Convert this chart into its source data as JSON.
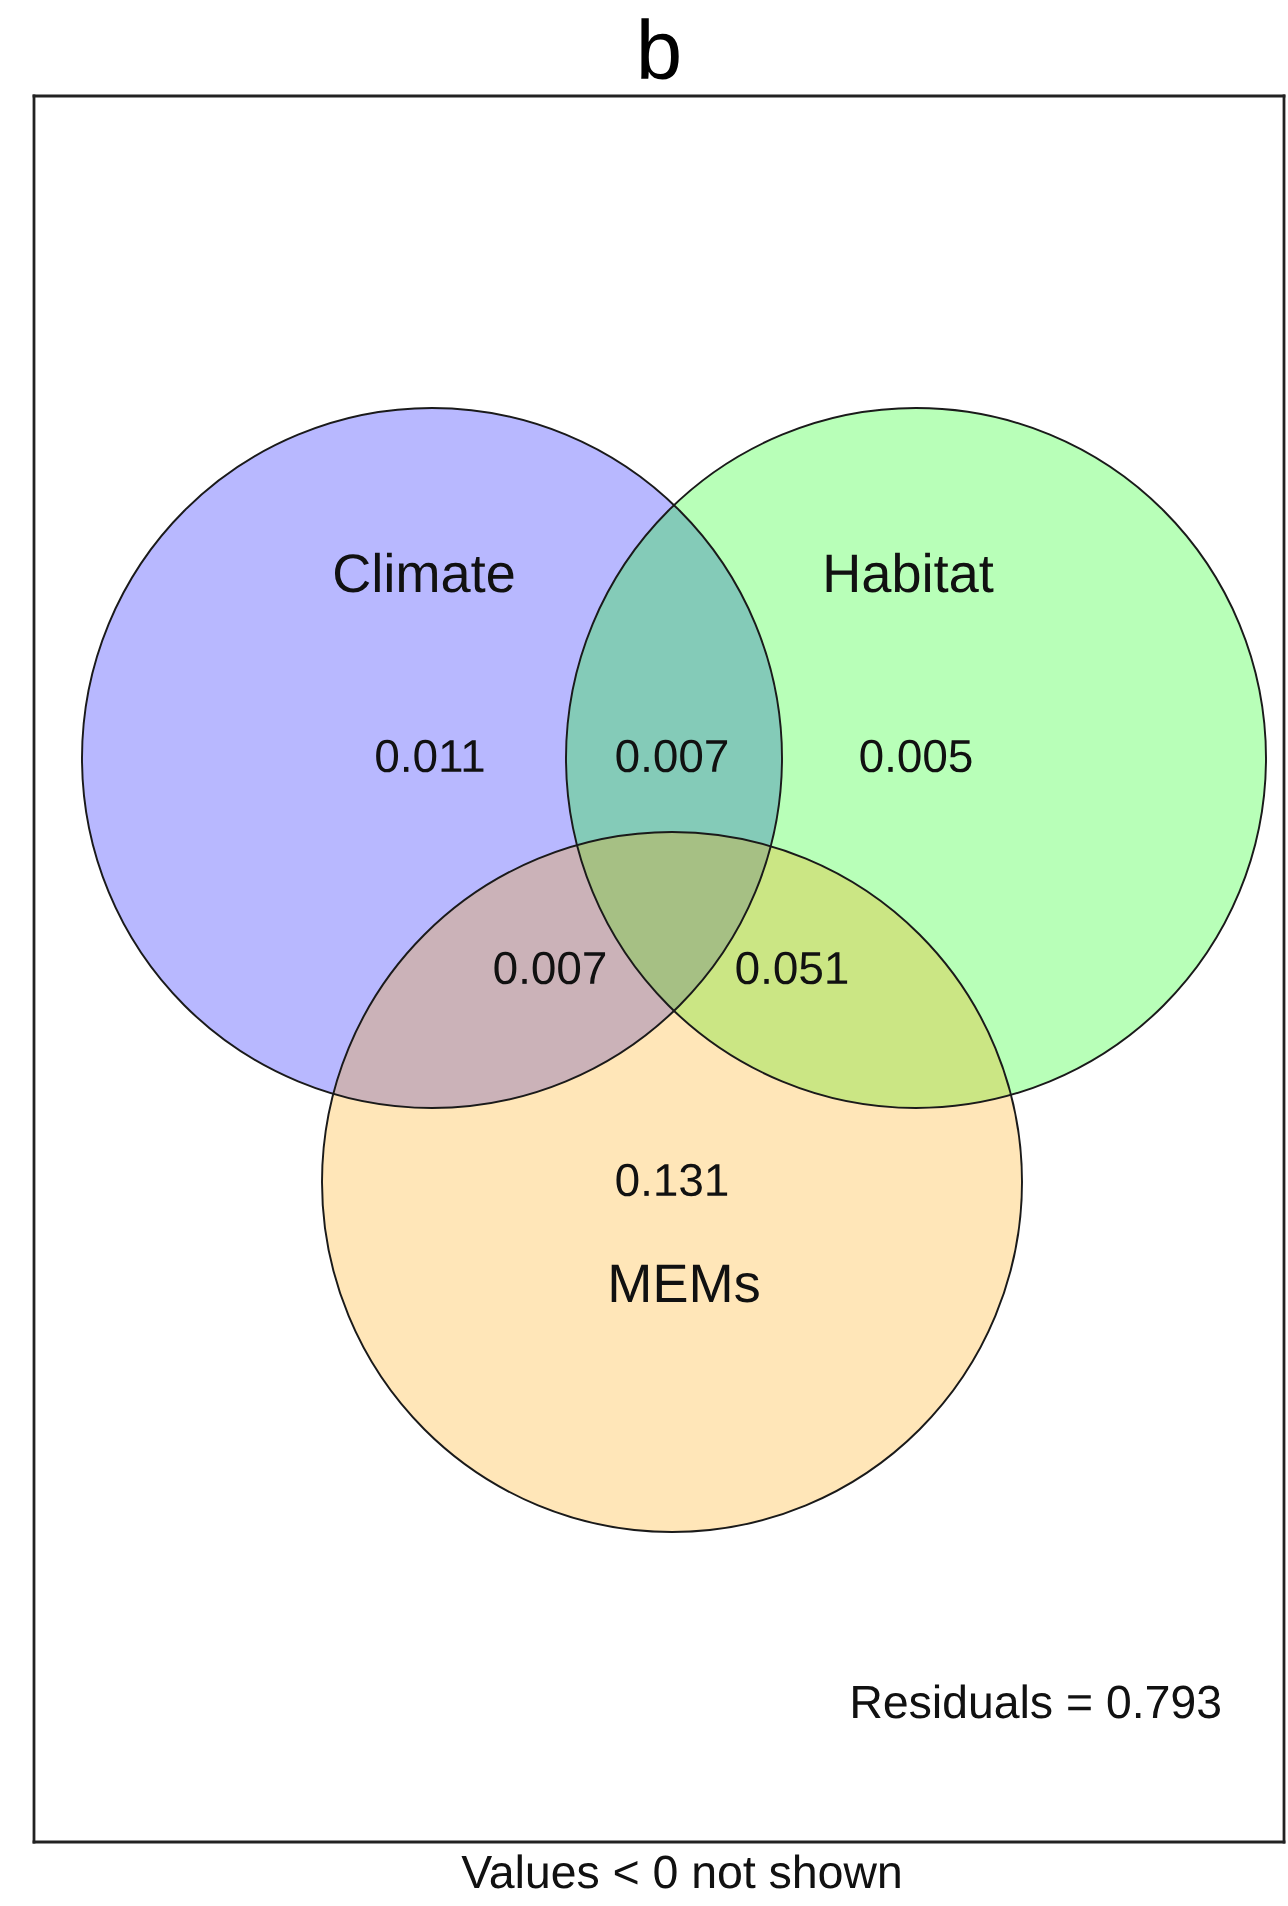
{
  "chart_data": {
    "type": "other",
    "title": "b",
    "categories": [
      "Climate",
      "Habitat",
      "MEMs"
    ],
    "values": [
      0.011,
      0.005,
      0.131
    ],
    "colors": [
      "#0000ff",
      "#00ff00",
      "#ffa500"
    ],
    "data_labels": true,
    "annotations": [
      "0.007",
      "0.007",
      "0.051",
      "Residuals = 0.793",
      "Values < 0 not shown"
    ]
  }
}
